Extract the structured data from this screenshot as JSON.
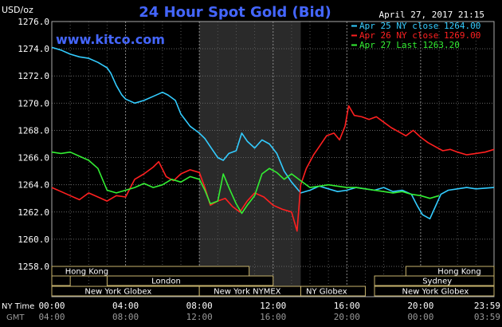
{
  "chart_data": {
    "type": "line",
    "title": "24 Hour Spot Gold (Bid)",
    "unit_label": "USD/oz",
    "timestamp": "April 27, 2017 21:15",
    "watermark": "www.kitco.com",
    "ylim": [
      1258.0,
      1276.0
    ],
    "y_ticks": [
      "1276.0",
      "1274.0",
      "1272.0",
      "1270.0",
      "1268.0",
      "1266.0",
      "1264.0",
      "1262.0",
      "1260.0",
      "1258.0"
    ],
    "x_row_ny_label": "NY Time",
    "x_row_gmt_label": "GMT",
    "x_ticks_ny": [
      "00:00",
      "04:00",
      "08:00",
      "12:00",
      "16:00",
      "20:00",
      "23:59"
    ],
    "x_ticks_gmt": [
      "04:00",
      "08:00",
      "12:00",
      "16:00",
      "20:00",
      "00:00",
      "03:59"
    ],
    "shaded_hours_ny": [
      8.0,
      13.5
    ],
    "legend_position": "top-right",
    "series": [
      {
        "name": "Apr 25 NY close 1264.00",
        "color": "#33ccff",
        "points": [
          [
            0,
            1274.1
          ],
          [
            0.5,
            1273.9
          ],
          [
            1,
            1273.6
          ],
          [
            1.5,
            1273.4
          ],
          [
            2,
            1273.3
          ],
          [
            2.5,
            1273.0
          ],
          [
            3,
            1272.6
          ],
          [
            3.2,
            1272.2
          ],
          [
            3.5,
            1271.3
          ],
          [
            3.8,
            1270.6
          ],
          [
            4,
            1270.3
          ],
          [
            4.5,
            1270.0
          ],
          [
            5,
            1270.2
          ],
          [
            5.5,
            1270.5
          ],
          [
            6,
            1270.8
          ],
          [
            6.3,
            1270.6
          ],
          [
            6.7,
            1270.2
          ],
          [
            7,
            1269.2
          ],
          [
            7.5,
            1268.3
          ],
          [
            8,
            1267.8
          ],
          [
            8.3,
            1267.4
          ],
          [
            8.6,
            1266.8
          ],
          [
            9,
            1266.0
          ],
          [
            9.3,
            1265.8
          ],
          [
            9.6,
            1266.3
          ],
          [
            10,
            1266.5
          ],
          [
            10.3,
            1267.8
          ],
          [
            10.6,
            1267.2
          ],
          [
            11,
            1266.7
          ],
          [
            11.4,
            1267.3
          ],
          [
            11.8,
            1267.0
          ],
          [
            12.2,
            1266.3
          ],
          [
            12.6,
            1265.0
          ],
          [
            13,
            1264.2
          ],
          [
            13.5,
            1263.4
          ],
          [
            14,
            1263.6
          ],
          [
            14.5,
            1263.9
          ],
          [
            15,
            1263.7
          ],
          [
            15.5,
            1263.5
          ],
          [
            16,
            1263.6
          ],
          [
            16.5,
            1263.8
          ],
          [
            17,
            1263.7
          ],
          [
            17.5,
            1263.6
          ],
          [
            18,
            1263.8
          ],
          [
            18.5,
            1263.5
          ],
          [
            19,
            1263.6
          ],
          [
            19.5,
            1263.3
          ],
          [
            19.8,
            1262.5
          ],
          [
            20.1,
            1261.8
          ],
          [
            20.5,
            1261.5
          ],
          [
            20.8,
            1262.4
          ],
          [
            21.1,
            1263.3
          ],
          [
            21.5,
            1263.6
          ],
          [
            22,
            1263.7
          ],
          [
            22.5,
            1263.8
          ],
          [
            23,
            1263.7
          ],
          [
            23.98,
            1263.8
          ]
        ]
      },
      {
        "name": "Apr 26 NY close 1269.00",
        "color": "#ff2020",
        "points": [
          [
            0,
            1263.8
          ],
          [
            0.5,
            1263.5
          ],
          [
            1,
            1263.2
          ],
          [
            1.5,
            1262.9
          ],
          [
            2,
            1263.4
          ],
          [
            2.5,
            1263.1
          ],
          [
            3,
            1262.8
          ],
          [
            3.5,
            1263.2
          ],
          [
            4,
            1263.1
          ],
          [
            4.5,
            1264.4
          ],
          [
            5,
            1264.8
          ],
          [
            5.5,
            1265.3
          ],
          [
            5.8,
            1265.7
          ],
          [
            6.2,
            1264.6
          ],
          [
            6.6,
            1264.3
          ],
          [
            7,
            1264.8
          ],
          [
            7.5,
            1265.1
          ],
          [
            8,
            1264.9
          ],
          [
            8.3,
            1263.8
          ],
          [
            8.6,
            1262.5
          ],
          [
            9,
            1262.8
          ],
          [
            9.4,
            1263.0
          ],
          [
            9.8,
            1262.4
          ],
          [
            10.2,
            1262.0
          ],
          [
            10.6,
            1262.8
          ],
          [
            11,
            1263.4
          ],
          [
            11.5,
            1263.1
          ],
          [
            12,
            1262.5
          ],
          [
            12.5,
            1262.2
          ],
          [
            13,
            1262.0
          ],
          [
            13.3,
            1260.6
          ],
          [
            13.5,
            1264.0
          ],
          [
            13.8,
            1265.2
          ],
          [
            14.2,
            1266.2
          ],
          [
            14.5,
            1266.8
          ],
          [
            14.9,
            1267.6
          ],
          [
            15.3,
            1267.8
          ],
          [
            15.6,
            1267.3
          ],
          [
            15.9,
            1268.3
          ],
          [
            16.1,
            1269.8
          ],
          [
            16.4,
            1269.1
          ],
          [
            16.8,
            1269.0
          ],
          [
            17.2,
            1268.8
          ],
          [
            17.6,
            1269.0
          ],
          [
            18,
            1268.6
          ],
          [
            18.4,
            1268.2
          ],
          [
            18.8,
            1267.9
          ],
          [
            19.2,
            1267.6
          ],
          [
            19.6,
            1268.0
          ],
          [
            20,
            1267.5
          ],
          [
            20.4,
            1267.1
          ],
          [
            20.8,
            1266.8
          ],
          [
            21.2,
            1266.5
          ],
          [
            21.6,
            1266.6
          ],
          [
            22,
            1266.4
          ],
          [
            22.5,
            1266.2
          ],
          [
            23,
            1266.3
          ],
          [
            23.5,
            1266.4
          ],
          [
            23.98,
            1266.6
          ]
        ]
      },
      {
        "name": "Apr 27 Last 1263.20",
        "color": "#33ee33",
        "points": [
          [
            0,
            1266.4
          ],
          [
            0.5,
            1266.3
          ],
          [
            1,
            1266.4
          ],
          [
            1.5,
            1266.1
          ],
          [
            2,
            1265.8
          ],
          [
            2.5,
            1265.2
          ],
          [
            3,
            1263.6
          ],
          [
            3.5,
            1263.4
          ],
          [
            4,
            1263.6
          ],
          [
            4.5,
            1263.8
          ],
          [
            5,
            1264.1
          ],
          [
            5.5,
            1263.8
          ],
          [
            6,
            1264.0
          ],
          [
            6.5,
            1264.4
          ],
          [
            7,
            1264.2
          ],
          [
            7.5,
            1264.6
          ],
          [
            8,
            1264.4
          ],
          [
            8.3,
            1263.6
          ],
          [
            8.6,
            1262.6
          ],
          [
            9,
            1262.8
          ],
          [
            9.3,
            1264.8
          ],
          [
            9.6,
            1263.8
          ],
          [
            10,
            1262.6
          ],
          [
            10.3,
            1261.9
          ],
          [
            10.6,
            1262.5
          ],
          [
            11,
            1263.2
          ],
          [
            11.4,
            1264.8
          ],
          [
            11.8,
            1265.2
          ],
          [
            12.2,
            1264.9
          ],
          [
            12.6,
            1264.4
          ],
          [
            13,
            1264.8
          ],
          [
            13.5,
            1264.3
          ],
          [
            14,
            1263.8
          ],
          [
            14.5,
            1263.9
          ],
          [
            15,
            1264.0
          ],
          [
            15.5,
            1263.9
          ],
          [
            16,
            1263.8
          ],
          [
            16.5,
            1263.8
          ],
          [
            17,
            1263.7
          ],
          [
            17.5,
            1263.6
          ],
          [
            18,
            1263.5
          ],
          [
            18.5,
            1263.4
          ],
          [
            19,
            1263.5
          ],
          [
            19.5,
            1263.3
          ],
          [
            20,
            1263.2
          ],
          [
            20.5,
            1263.0
          ],
          [
            21,
            1263.2
          ]
        ]
      }
    ],
    "sessions": [
      {
        "label": "Hong Kong",
        "start": 0.0,
        "end": 10.7,
        "row": 0,
        "label_at": 1.9
      },
      {
        "label": "London",
        "start": 0.0,
        "end": 1.0,
        "row": 1,
        "label_at": null
      },
      {
        "label": "London",
        "start": 3.0,
        "end": 12.0,
        "row": 1,
        "label_at": 6.2
      },
      {
        "label": "New York Globex",
        "start": 0.0,
        "end": 8.0,
        "row": 2,
        "label_at": 3.6
      },
      {
        "label": "New York NYMEX",
        "start": 8.0,
        "end": 13.5,
        "row": 2,
        "label_at": 10.6
      },
      {
        "label": "NY Globex",
        "start": 13.5,
        "end": 17.0,
        "row": 2,
        "label_at": 14.9
      },
      {
        "label": "Hong Kong",
        "start": 19.2,
        "end": 23.98,
        "row": 0,
        "label_at": 22.1
      },
      {
        "label": "Sydney",
        "start": 17.5,
        "end": 23.98,
        "row": 1,
        "label_at": 20.9
      },
      {
        "label": "New York Globex",
        "start": 17.5,
        "end": 23.98,
        "row": 2,
        "label_at": 20.8
      }
    ]
  }
}
